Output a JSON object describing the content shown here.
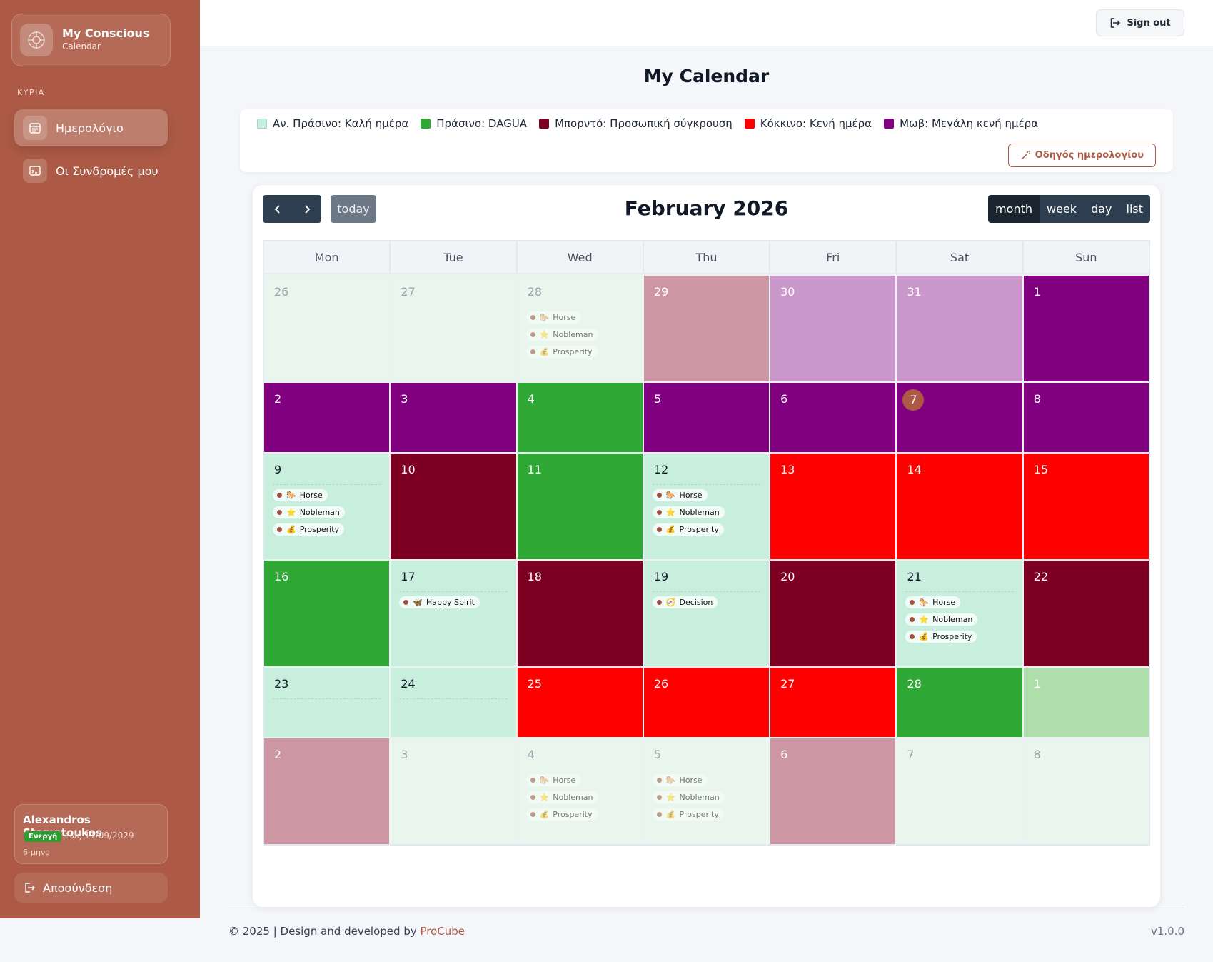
{
  "sidebar": {
    "brand_title": "My Conscious",
    "brand_subtitle": "Calendar",
    "section_label": "ΚΥΡΙΑ",
    "items": [
      {
        "label": "Ημερολόγιο",
        "icon": "calendar-icon",
        "active": true
      },
      {
        "label": "Οι Συνδρομές μου",
        "icon": "subscriptions-icon",
        "active": false
      }
    ],
    "user": {
      "name": "Alexandros Stamatoukos",
      "badge": "Ενεργή",
      "until": "έως 11/09/2029",
      "plan": "6-μηνο"
    },
    "logout_label": "Αποσύνδεση"
  },
  "topbar": {
    "signout_label": "Sign out"
  },
  "page_title": "My Calendar",
  "legend": {
    "items": [
      {
        "label": "Αν. Πράσινο: Καλή ημέρα",
        "color": "#c8efdd"
      },
      {
        "label": "Πράσινο: DAGUA",
        "color": "#30a835"
      },
      {
        "label": "Μπορντό: Προσωπική σύγκρουση",
        "color": "#7d0022"
      },
      {
        "label": "Κόκκινο: Κενή ημέρα",
        "color": "#ff0000"
      },
      {
        "label": "Μωβ: Μεγάλη κενή ημέρα",
        "color": "#800080"
      }
    ],
    "guide_label": "Οδηγός ημερολογίου"
  },
  "calendar": {
    "title": "February 2026",
    "today_label": "today",
    "views": [
      "month",
      "week",
      "day",
      "list"
    ],
    "active_view": "month",
    "weekdays": [
      "Mon",
      "Tue",
      "Wed",
      "Thu",
      "Fri",
      "Sat",
      "Sun"
    ],
    "colors": {
      "light": "#c8efdd",
      "light_other": "#e8f6ee",
      "green": "#30a835",
      "bordeaux": "#7d0022",
      "red": "#ff0000",
      "purple": "#800080",
      "pale_bordeaux": "#cc97a2",
      "pale_purple": "#c997c9",
      "pale_green": "#aedeaa",
      "today": "#ac5a45"
    },
    "weeks": [
      [
        {
          "day": "26",
          "color": "light_other",
          "other": true,
          "events": []
        },
        {
          "day": "27",
          "color": "light_other",
          "other": true,
          "events": []
        },
        {
          "day": "28",
          "color": "light_other",
          "other": true,
          "events": [
            {
              "title": "Horse",
              "icon": "🐎"
            },
            {
              "title": "Nobleman",
              "icon": "⭐"
            },
            {
              "title": "Prosperity",
              "icon": "💰"
            }
          ]
        },
        {
          "day": "29",
          "color": "pale_bordeaux",
          "other": true,
          "events": []
        },
        {
          "day": "30",
          "color": "pale_purple",
          "other": true,
          "events": []
        },
        {
          "day": "31",
          "color": "pale_purple",
          "other": true,
          "events": []
        },
        {
          "day": "1",
          "color": "purple",
          "events": []
        }
      ],
      [
        {
          "day": "2",
          "color": "purple",
          "events": []
        },
        {
          "day": "3",
          "color": "purple",
          "events": []
        },
        {
          "day": "4",
          "color": "green",
          "events": []
        },
        {
          "day": "5",
          "color": "purple",
          "events": []
        },
        {
          "day": "6",
          "color": "purple",
          "events": []
        },
        {
          "day": "7",
          "color": "purple",
          "today": true,
          "events": []
        },
        {
          "day": "8",
          "color": "purple",
          "events": []
        }
      ],
      [
        {
          "day": "9",
          "color": "light",
          "events": [
            {
              "title": "Horse",
              "icon": "🐎"
            },
            {
              "title": "Nobleman",
              "icon": "⭐"
            },
            {
              "title": "Prosperity",
              "icon": "💰"
            }
          ]
        },
        {
          "day": "10",
          "color": "bordeaux",
          "events": []
        },
        {
          "day": "11",
          "color": "green",
          "events": []
        },
        {
          "day": "12",
          "color": "light",
          "events": [
            {
              "title": "Horse",
              "icon": "🐎"
            },
            {
              "title": "Nobleman",
              "icon": "⭐"
            },
            {
              "title": "Prosperity",
              "icon": "💰"
            }
          ]
        },
        {
          "day": "13",
          "color": "red",
          "events": []
        },
        {
          "day": "14",
          "color": "red",
          "events": []
        },
        {
          "day": "15",
          "color": "red",
          "events": []
        }
      ],
      [
        {
          "day": "16",
          "color": "green",
          "events": []
        },
        {
          "day": "17",
          "color": "light",
          "events": [
            {
              "title": "Happy Spirit",
              "icon": "🦋"
            }
          ]
        },
        {
          "day": "18",
          "color": "bordeaux",
          "events": []
        },
        {
          "day": "19",
          "color": "light",
          "events": [
            {
              "title": "Decision",
              "icon": "🧭"
            }
          ]
        },
        {
          "day": "20",
          "color": "bordeaux",
          "events": []
        },
        {
          "day": "21",
          "color": "light",
          "events": [
            {
              "title": "Horse",
              "icon": "🐎"
            },
            {
              "title": "Nobleman",
              "icon": "⭐"
            },
            {
              "title": "Prosperity",
              "icon": "💰"
            }
          ]
        },
        {
          "day": "22",
          "color": "bordeaux",
          "events": []
        }
      ],
      [
        {
          "day": "23",
          "color": "light",
          "events": []
        },
        {
          "day": "24",
          "color": "light",
          "events": []
        },
        {
          "day": "25",
          "color": "red",
          "events": []
        },
        {
          "day": "26",
          "color": "red",
          "events": []
        },
        {
          "day": "27",
          "color": "red",
          "events": []
        },
        {
          "day": "28",
          "color": "green",
          "events": []
        },
        {
          "day": "1",
          "color": "pale_green",
          "other": true,
          "events": []
        }
      ],
      [
        {
          "day": "2",
          "color": "pale_bordeaux",
          "other": true,
          "events": []
        },
        {
          "day": "3",
          "color": "light_other",
          "other": true,
          "events": []
        },
        {
          "day": "4",
          "color": "light_other",
          "other": true,
          "events": [
            {
              "title": "Horse",
              "icon": "🐎"
            },
            {
              "title": "Nobleman",
              "icon": "⭐"
            },
            {
              "title": "Prosperity",
              "icon": "💰"
            }
          ]
        },
        {
          "day": "5",
          "color": "light_other",
          "other": true,
          "events": [
            {
              "title": "Horse",
              "icon": "🐎"
            },
            {
              "title": "Nobleman",
              "icon": "⭐"
            },
            {
              "title": "Prosperity",
              "icon": "💰"
            }
          ]
        },
        {
          "day": "6",
          "color": "pale_bordeaux",
          "other": true,
          "events": []
        },
        {
          "day": "7",
          "color": "light_other",
          "other": true,
          "events": []
        },
        {
          "day": "8",
          "color": "light_other",
          "other": true,
          "events": []
        }
      ]
    ]
  },
  "footer": {
    "text": "© 2025 | Design and developed by ",
    "link": "ProCube",
    "version": "v1.0.0"
  }
}
